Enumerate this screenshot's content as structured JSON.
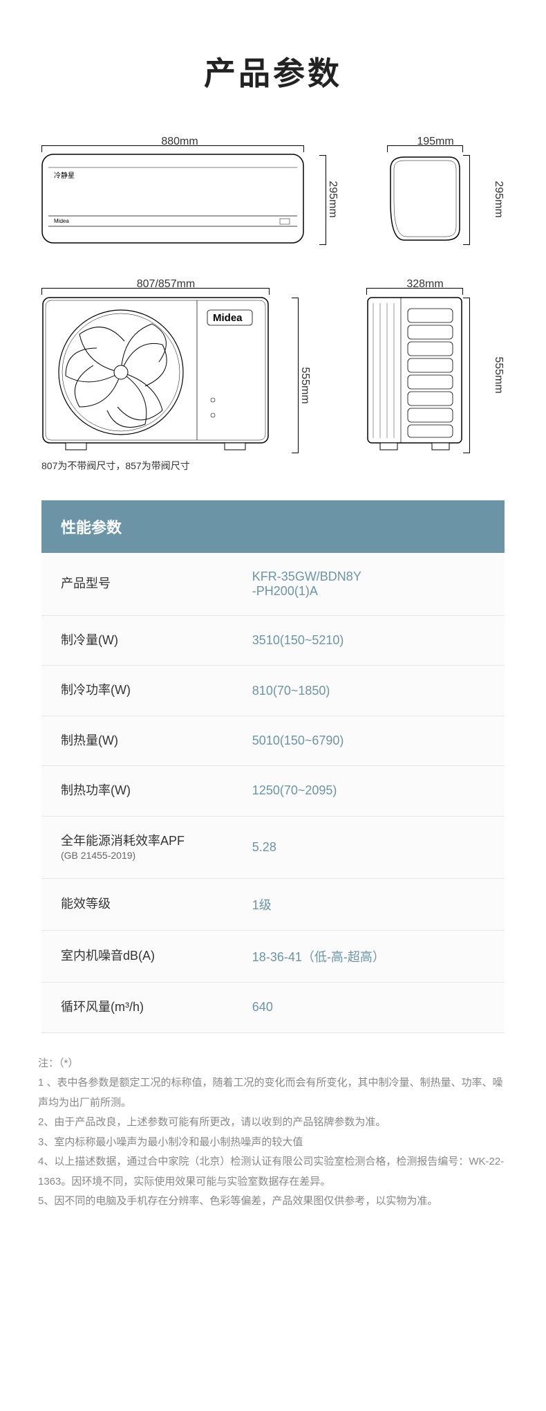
{
  "title": "产品参数",
  "diagrams": {
    "indoor": {
      "front": {
        "width_label": "880mm",
        "height_label": "295mm"
      },
      "side": {
        "width_label": "195mm",
        "height_label": "295mm"
      }
    },
    "outdoor": {
      "front": {
        "width_label": "807/857mm",
        "height_label": "555mm"
      },
      "side": {
        "width_label": "328mm",
        "height_label": "555mm"
      },
      "note": "807为不带阀尺寸，857为带阀尺寸"
    },
    "brand_text": "Midea",
    "indoor_brand_small": "冷静星"
  },
  "spec": {
    "heading": "性能参数",
    "rows": [
      {
        "label": "产品型号",
        "value": "KFR-35GW/BDN8Y\n-PH200(1)A"
      },
      {
        "label": "制冷量(W)",
        "value": "3510(150~5210)"
      },
      {
        "label": "制冷功率(W)",
        "value": "810(70~1850)"
      },
      {
        "label": "制热量(W)",
        "value": "5010(150~6790)"
      },
      {
        "label": "制热功率(W)",
        "value": "1250(70~2095)"
      },
      {
        "label": "全年能源消耗效率APF",
        "sub": "(GB 21455-2019)",
        "value": "5.28"
      },
      {
        "label": "能效等级",
        "value": "1级"
      },
      {
        "label": "室内机噪音dB(A)",
        "value": "18-36-41（低-高-超高）"
      },
      {
        "label": "循环风量(m³/h)",
        "value": "640"
      }
    ]
  },
  "notes": {
    "head": "注：（*）",
    "lines": [
      "1 、表中各参数是额定工况的标称值，随着工况的变化而会有所变化，其中制冷量、制热量、功率、噪声均为出厂前所测。",
      "2、由于产品改良，上述参数可能有所更改，请以收到的产品铭牌参数为准。",
      "3、室内标称最小噪声为最小制冷和最小制热噪声的较大值",
      "4、以上描述数据，通过合中家院（北京）检测认证有限公司实验室检测合格，检测报告编号：WK-22-1363。因环境不同，实际使用效果可能与实验室数据存在差异。",
      "5、因不同的电脑及手机存在分辨率、色彩等偏差，产品效果图仅供参考，以实物为准。"
    ]
  },
  "colors": {
    "header_bg": "#6b95a6",
    "value_text": "#6b95a6",
    "note_text": "#888888",
    "border": "#e6e6e6"
  }
}
